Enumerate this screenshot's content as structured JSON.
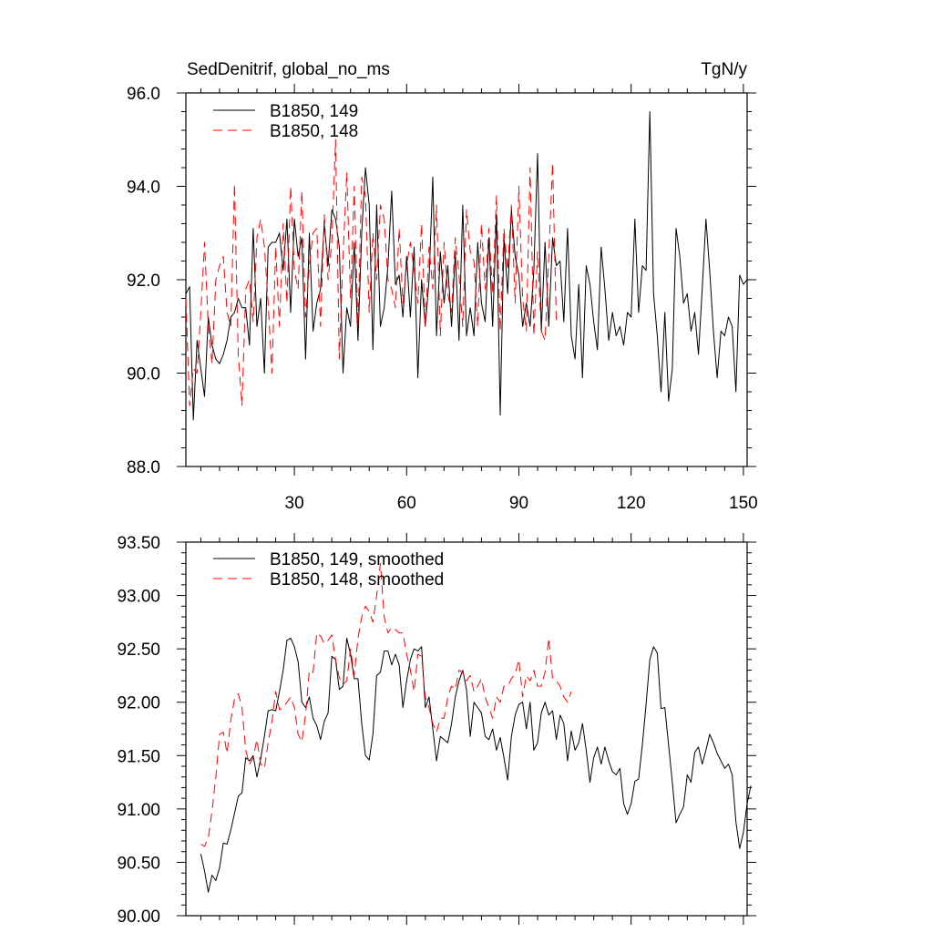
{
  "colors": {
    "series_a": "#000000",
    "series_b": "#ff0000",
    "axis": "#000000",
    "background": "#ffffff"
  },
  "chart_data": [
    {
      "type": "line",
      "title_left": "SedDenitrif, global_no_ms",
      "title_right": "TgN/y",
      "xlabel": "",
      "ylabel": "",
      "xlim": [
        1,
        151
      ],
      "ylim": [
        88.0,
        96.0
      ],
      "x_ticks": [
        30,
        60,
        90,
        120,
        150
      ],
      "x_tick_labels": [
        "30",
        "60",
        "90",
        "120",
        "150"
      ],
      "y_ticks": [
        88.0,
        90.0,
        92.0,
        94.0,
        96.0
      ],
      "y_tick_labels": [
        "88.0",
        "90.0",
        "92.0",
        "94.0",
        "96.0"
      ],
      "grid": false,
      "legend": "top-left",
      "series": [
        {
          "name": "B1850, 149",
          "style": "solid",
          "x_start": 1,
          "values": [
            91.7,
            91.85,
            89.0,
            90.7,
            90.1,
            89.5,
            91.2,
            90.6,
            90.3,
            90.2,
            90.4,
            90.7,
            91.2,
            91.3,
            91.6,
            91.4,
            91.4,
            90.6,
            93.1,
            91.0,
            91.6,
            90.0,
            92.7,
            92.8,
            92.8,
            93.0,
            92.2,
            93.3,
            91.3,
            93.3,
            92.5,
            92.9,
            90.3,
            93.0,
            90.9,
            91.5,
            91.8,
            93.2,
            92.3,
            93.5,
            93.3,
            92.7,
            90.0,
            91.4,
            91.0,
            92.8,
            90.7,
            93.0,
            94.4,
            93.6,
            90.5,
            93.6,
            91.0,
            91.4,
            92.3,
            93.9,
            91.9,
            92.1,
            91.2,
            92.5,
            91.2,
            92.7,
            89.9,
            92.0,
            91.0,
            92.0,
            94.2,
            90.8,
            92.6,
            91.5,
            92.3,
            91.0,
            92.6,
            90.7,
            93.6,
            90.8,
            91.4,
            90.8,
            92.8,
            91.5,
            91.1,
            92.9,
            91.0,
            93.4,
            89.1,
            92.9,
            91.7,
            93.5,
            92.5,
            92.1,
            91.0,
            91.5,
            91.0,
            92.2,
            94.7,
            90.9,
            92.8,
            91.0,
            92.9,
            92.3,
            92.4,
            91.1,
            93.1,
            90.8,
            90.3,
            91.9,
            89.9,
            92.3,
            91.9,
            91.1,
            90.5,
            92.7,
            91.8,
            90.7,
            91.3,
            90.8,
            91.0,
            90.6,
            91.3,
            91.2,
            93.3,
            91.3,
            92.3,
            92.2,
            95.6,
            91.7,
            90.8,
            89.6,
            91.3,
            89.4,
            90.1,
            93.1,
            92.5,
            91.5,
            91.7,
            90.9,
            91.3,
            90.4,
            91.8,
            93.3,
            92.2,
            90.9,
            89.9,
            90.9,
            90.8,
            91.2,
            91.0,
            89.6,
            92.1,
            91.9,
            92.0
          ]
        },
        {
          "name": "B1850, 148",
          "style": "dashed",
          "x_start": 1,
          "values": [
            91.6,
            89.3,
            90.1,
            90.0,
            91.3,
            92.8,
            91.0,
            90.2,
            92.0,
            92.3,
            92.5,
            91.3,
            91.0,
            94.05,
            90.4,
            89.3,
            91.8,
            92.0,
            91.1,
            92.9,
            93.3,
            92.7,
            91.5,
            90.0,
            92.7,
            91.0,
            93.2,
            91.5,
            94.0,
            92.2,
            91.8,
            93.9,
            91.2,
            92.3,
            93.0,
            93.1,
            91.0,
            93.4,
            92.0,
            92.8,
            95.0,
            90.3,
            92.5,
            94.3,
            91.6,
            94.0,
            91.0,
            94.2,
            93.8,
            91.3,
            93.0,
            92.0,
            93.6,
            93.3,
            92.0,
            91.8,
            91.4,
            93.1,
            91.5,
            92.3,
            92.8,
            92.2,
            91.5,
            93.2,
            91.0,
            92.7,
            91.8,
            93.6,
            90.8,
            92.8,
            91.7,
            91.3,
            92.9,
            92.1,
            91.0,
            93.5,
            92.6,
            92.4,
            91.0,
            93.2,
            91.8,
            93.1,
            91.7,
            93.8,
            90.9,
            93.1,
            92.2,
            93.6,
            91.5,
            94.0,
            91.6,
            90.9,
            94.4,
            90.8,
            92.6,
            90.9,
            90.7,
            92.5,
            94.5,
            91.1
          ]
        }
      ]
    },
    {
      "type": "line",
      "xlim": [
        1,
        151
      ],
      "ylim": [
        90.0,
        93.5
      ],
      "x_ticks": [
        30,
        60,
        90,
        120,
        150
      ],
      "y_ticks": [
        90.0,
        90.5,
        91.0,
        91.5,
        92.0,
        92.5,
        93.0,
        93.5
      ],
      "y_tick_labels": [
        "90.00",
        "90.50",
        "91.00",
        "91.50",
        "92.00",
        "92.50",
        "93.00",
        "93.50"
      ],
      "grid": false,
      "legend": "top-left",
      "series": [
        {
          "name": "B1850, 149, smoothed",
          "style": "solid",
          "x_start": 5,
          "values": [
            90.58,
            90.42,
            90.22,
            90.38,
            90.33,
            90.45,
            90.68,
            90.67,
            90.8,
            90.96,
            91.12,
            91.15,
            91.48,
            91.45,
            91.5,
            91.3,
            91.47,
            91.68,
            91.92,
            91.93,
            91.92,
            92.1,
            92.3,
            92.58,
            92.6,
            92.52,
            92.38,
            92.0,
            91.95,
            92.05,
            91.85,
            91.78,
            91.65,
            91.82,
            91.9,
            92.43,
            92.4,
            92.12,
            92.15,
            92.6,
            92.45,
            92.22,
            92.22,
            91.8,
            91.5,
            91.46,
            91.7,
            92.25,
            92.28,
            92.48,
            92.48,
            92.35,
            92.45,
            92.35,
            91.95,
            92.2,
            92.4,
            92.5,
            92.48,
            92.52,
            91.95,
            92.05,
            91.75,
            91.45,
            91.68,
            91.65,
            91.62,
            91.8,
            92.05,
            92.2,
            92.3,
            92.12,
            91.68,
            92.0,
            91.95,
            91.9,
            91.68,
            91.65,
            91.75,
            91.55,
            91.67,
            91.48,
            91.27,
            91.68,
            91.88,
            91.98,
            92.0,
            91.75,
            92.0,
            91.55,
            91.62,
            91.9,
            92.0,
            91.88,
            91.92,
            91.65,
            91.88,
            91.8,
            91.45,
            91.73,
            91.55,
            91.62,
            91.8,
            91.55,
            91.25,
            91.48,
            91.58,
            91.42,
            91.58,
            91.45,
            91.35,
            91.32,
            91.38,
            91.05,
            90.95,
            91.05,
            91.26,
            91.28,
            91.6,
            91.98,
            92.4,
            92.52,
            92.46,
            91.94,
            91.95,
            91.6,
            91.25,
            90.87,
            90.95,
            91.02,
            91.32,
            91.25,
            91.53,
            91.58,
            91.42,
            91.55,
            91.7,
            91.62,
            91.52,
            91.45,
            91.38,
            91.42,
            91.32,
            90.88,
            90.63,
            90.78,
            91.05,
            91.22
          ]
        },
        {
          "name": "B1850, 148, smoothed",
          "style": "dashed",
          "x_start": 5,
          "values": [
            90.67,
            90.65,
            90.73,
            90.98,
            91.3,
            91.7,
            91.72,
            91.52,
            91.83,
            92.03,
            92.08,
            91.95,
            91.55,
            91.42,
            91.48,
            91.65,
            91.42,
            91.38,
            91.62,
            91.82,
            92.1,
            91.93,
            91.95,
            92.0,
            92.05,
            91.95,
            91.7,
            91.63,
            91.88,
            92.3,
            92.28,
            92.65,
            92.62,
            92.55,
            92.58,
            92.63,
            92.4,
            92.23,
            92.17,
            92.2,
            92.5,
            92.25,
            92.6,
            92.8,
            92.9,
            92.85,
            92.75,
            93.0,
            93.3,
            92.8,
            92.65,
            92.7,
            92.68,
            92.65,
            92.65,
            92.45,
            92.3,
            92.1,
            92.45,
            92.43,
            92.05,
            91.95,
            91.8,
            91.72,
            91.85,
            91.85,
            92.05,
            92.15,
            92.12,
            92.3,
            92.28,
            92.2,
            92.25,
            92.1,
            92.15,
            92.22,
            92.05,
            91.95,
            91.85,
            92.05,
            92.0,
            92.15,
            92.15,
            92.22,
            92.27,
            92.4,
            92.05,
            92.25,
            92.2,
            92.3,
            92.15,
            92.15,
            92.28,
            92.6,
            92.22,
            92.2,
            92.15,
            92.05,
            92.0,
            92.1
          ]
        }
      ]
    }
  ]
}
